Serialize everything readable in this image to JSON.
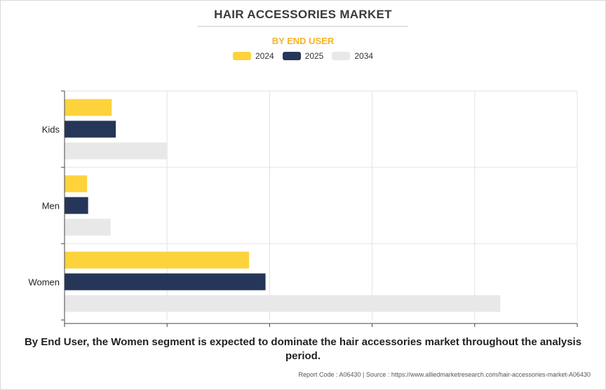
{
  "title": "HAIR ACCESSORIES MARKET",
  "subtitle": "BY END USER",
  "caption": "By End User, the Women segment is expected to dominate the hair accessories market throughout the analysis period.",
  "source": "Report Code : A06430  |  Source : https://www.alliedmarketresearch.com/hair-accessories-market-A06430",
  "colors": {
    "2024": "#fdd33c",
    "2025": "#253659",
    "2034": "#e8e8e8",
    "subtitle": "#f5b325"
  },
  "chart_data": {
    "type": "bar",
    "orientation": "horizontal",
    "categories": [
      "Kids",
      "Men",
      "Women"
    ],
    "series": [
      {
        "name": "2024",
        "values": [
          0.46,
          0.22,
          1.8
        ]
      },
      {
        "name": "2025",
        "values": [
          0.5,
          0.23,
          1.96
        ]
      },
      {
        "name": "2034",
        "values": [
          1.0,
          0.45,
          4.25
        ]
      }
    ],
    "xlim": [
      0,
      5
    ],
    "x_tick_labels_shown": false,
    "grid": true,
    "legend_position": "top-center"
  }
}
